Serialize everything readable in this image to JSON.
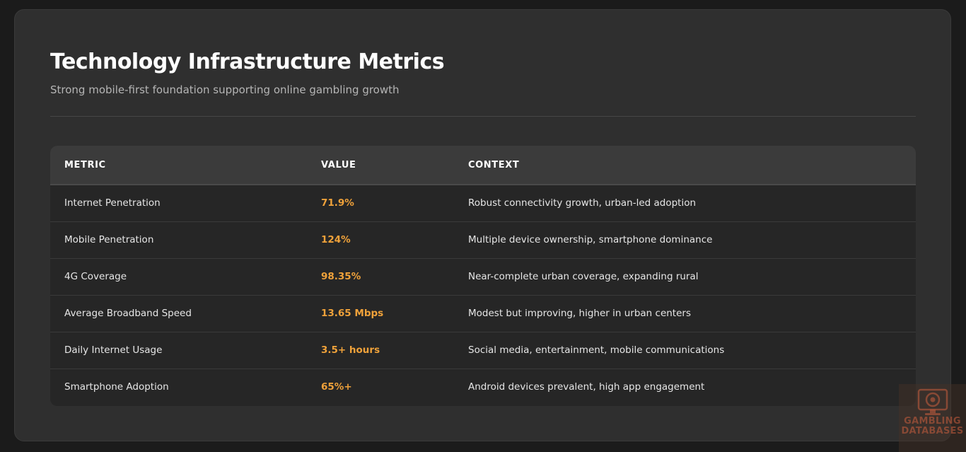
{
  "header": {
    "title": "Technology Infrastructure Metrics",
    "subtitle": "Strong mobile-first foundation supporting online gambling growth"
  },
  "table": {
    "columns": [
      "METRIC",
      "VALUE",
      "CONTEXT"
    ],
    "rows": [
      {
        "metric": "Internet Penetration",
        "value": "71.9%",
        "context": "Robust connectivity growth, urban-led adoption"
      },
      {
        "metric": "Mobile Penetration",
        "value": "124%",
        "context": "Multiple device ownership, smartphone dominance"
      },
      {
        "metric": "4G Coverage",
        "value": "98.35%",
        "context": "Near-complete urban coverage, expanding rural"
      },
      {
        "metric": "Average Broadband Speed",
        "value": "13.65 Mbps",
        "context": "Modest but improving, higher in urban centers"
      },
      {
        "metric": "Daily Internet Usage",
        "value": "3.5+ hours",
        "context": "Social media, entertainment, mobile communications"
      },
      {
        "metric": "Smartphone Adoption",
        "value": "65%+",
        "context": "Android devices prevalent, high app engagement"
      }
    ]
  },
  "watermark": {
    "line1": "GAMBLING",
    "line2": "DATABASES",
    "icon": "chip-monitor-icon"
  },
  "colors": {
    "background": "#1b1b1b",
    "card": "#2f2f2f",
    "accent": "#f0a23a",
    "header_row": "#3b3b3b"
  }
}
